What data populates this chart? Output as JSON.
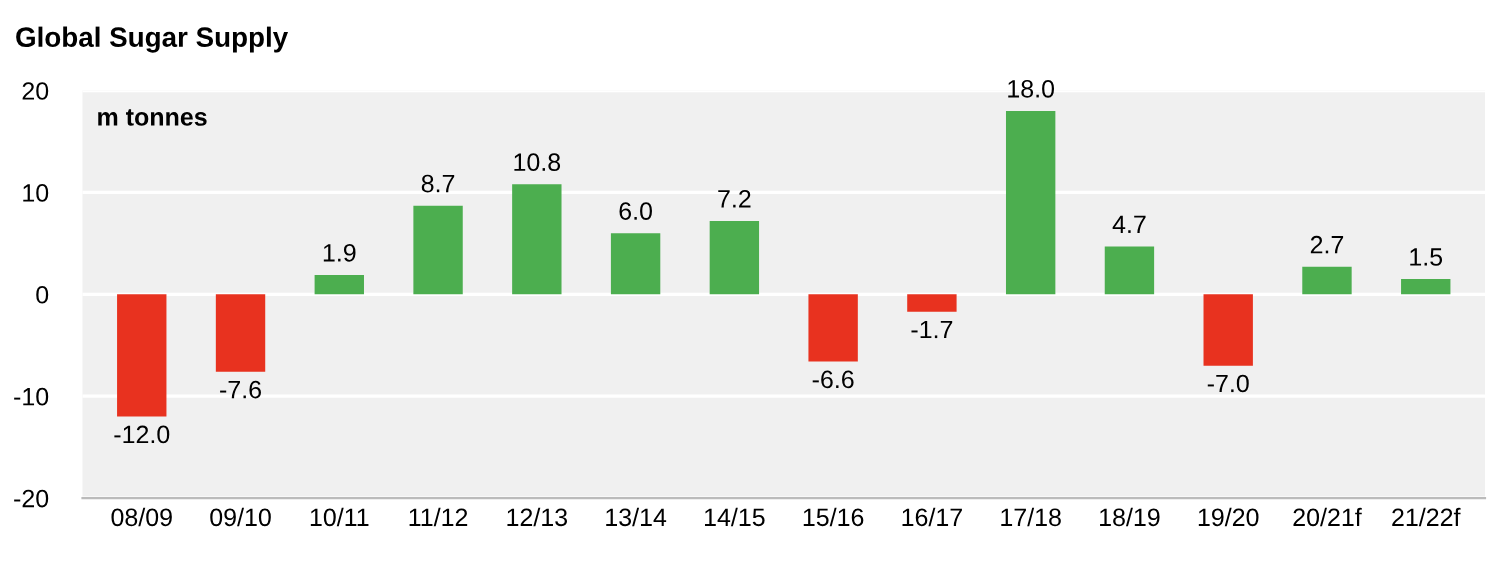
{
  "chart_data": {
    "type": "bar",
    "title": "Global Sugar Supply",
    "ylabel": "m tonnes",
    "categories": [
      "08/09",
      "09/10",
      "10/11",
      "11/12",
      "12/13",
      "13/14",
      "14/15",
      "15/16",
      "16/17",
      "17/18",
      "18/19",
      "19/20",
      "20/21f",
      "21/22f"
    ],
    "values": [
      -12.0,
      -7.6,
      1.9,
      8.7,
      10.8,
      6.0,
      7.2,
      -6.6,
      -1.7,
      18.0,
      4.7,
      -7.0,
      2.7,
      1.5
    ],
    "colors": [
      "#e8321f",
      "#e8321f",
      "#4cae4f",
      "#4cae4f",
      "#4cae4f",
      "#4cae4f",
      "#4cae4f",
      "#e8321f",
      "#e8321f",
      "#4cae4f",
      "#4cae4f",
      "#e8321f",
      "#4cae4f",
      "#4cae4f"
    ],
    "value_labels": [
      "-12.0",
      "-7.6",
      "1.9",
      "8.7",
      "10.8",
      "6.0",
      "7.2",
      "-6.6",
      "-1.7",
      "18.0",
      "4.7",
      "-7.0",
      "2.7",
      "1.5"
    ],
    "ylim": [
      -20,
      20
    ],
    "yticks": [
      -20,
      -10,
      0,
      10,
      20
    ],
    "grid": "y"
  }
}
